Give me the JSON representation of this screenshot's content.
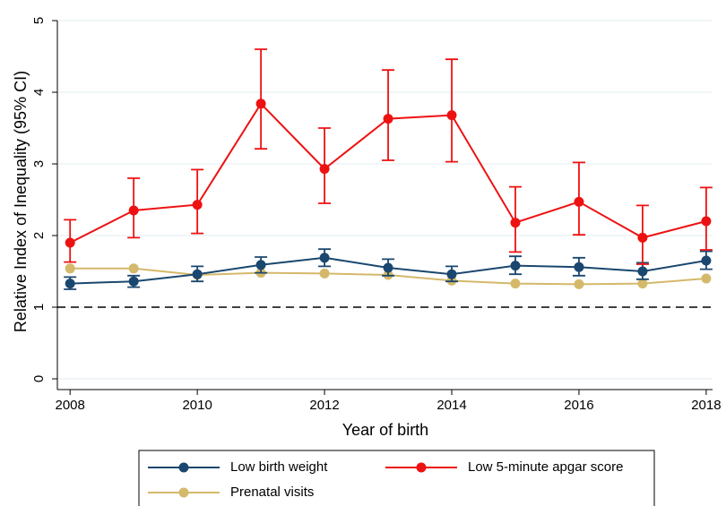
{
  "chart_data": {
    "type": "line",
    "x_label": "Year of birth",
    "y_label": "Relative Index of Inequality (95% CI)",
    "x": [
      2008,
      2009,
      2010,
      2011,
      2012,
      2013,
      2014,
      2015,
      2016,
      2017,
      2018
    ],
    "xlim": [
      2007.8,
      2018.1
    ],
    "xticks": [
      2008,
      2010,
      2012,
      2014,
      2016,
      2018
    ],
    "ylim": [
      -0.15,
      5
    ],
    "yticks": [
      0,
      1,
      2,
      3,
      4,
      5
    ],
    "grid": true,
    "reference_line": 1,
    "series": [
      {
        "name": "Low birth weight",
        "color": "#1a476f",
        "values": [
          1.33,
          1.36,
          1.46,
          1.59,
          1.69,
          1.55,
          1.46,
          1.58,
          1.56,
          1.5,
          1.65
        ],
        "lower": [
          1.25,
          1.28,
          1.36,
          1.48,
          1.57,
          1.44,
          1.36,
          1.46,
          1.44,
          1.39,
          1.53
        ],
        "upper": [
          1.42,
          1.44,
          1.57,
          1.7,
          1.81,
          1.67,
          1.57,
          1.71,
          1.69,
          1.62,
          1.78
        ]
      },
      {
        "name": "Low 5-minute apgar score",
        "color": "#ee1111",
        "values": [
          1.9,
          2.35,
          2.43,
          3.84,
          2.93,
          3.63,
          3.68,
          2.18,
          2.47,
          1.97,
          2.2
        ],
        "lower": [
          1.63,
          1.97,
          2.03,
          3.21,
          2.45,
          3.05,
          3.03,
          1.77,
          2.01,
          1.6,
          1.8
        ],
        "upper": [
          2.22,
          2.8,
          2.92,
          4.6,
          3.5,
          4.31,
          4.46,
          2.68,
          3.02,
          2.42,
          2.67
        ]
      },
      {
        "name": "Prenatal visits",
        "color": "#d4b96a",
        "values": [
          1.54,
          1.54,
          1.45,
          1.48,
          1.47,
          1.45,
          1.37,
          1.33,
          1.32,
          1.33,
          1.4
        ]
      }
    ]
  }
}
